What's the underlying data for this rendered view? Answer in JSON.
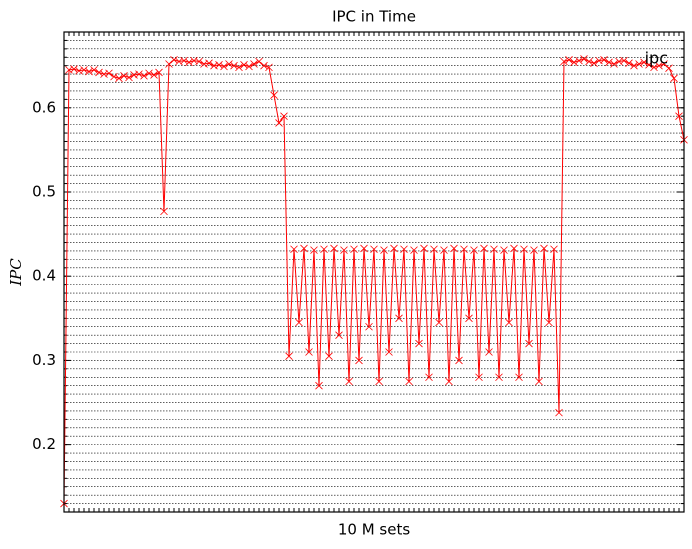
{
  "chart_data": {
    "type": "line",
    "title": "IPC in Time",
    "x_label": "10 M sets",
    "y_label": "IPC",
    "legend": "upper right",
    "grid": true,
    "xlim": [
      0,
      124
    ],
    "ylim": [
      0.12,
      0.69
    ],
    "yticks": [
      0.2,
      0.3,
      0.4,
      0.5,
      0.6
    ],
    "yminor": [
      0.12,
      0.13,
      0.14,
      0.15,
      0.16,
      0.17,
      0.18,
      0.19,
      0.2,
      0.21,
      0.22,
      0.23,
      0.24,
      0.25,
      0.26,
      0.27,
      0.28,
      0.29,
      0.3,
      0.31,
      0.32,
      0.33,
      0.34,
      0.35,
      0.36,
      0.37,
      0.38,
      0.39,
      0.4,
      0.41,
      0.42,
      0.43,
      0.44,
      0.45,
      0.46,
      0.47,
      0.48,
      0.49,
      0.5,
      0.51,
      0.52,
      0.53,
      0.54,
      0.55,
      0.56,
      0.57,
      0.58,
      0.59,
      0.6,
      0.61,
      0.62,
      0.63,
      0.64,
      0.65,
      0.66,
      0.67,
      0.68,
      0.69
    ],
    "x": [
      0,
      1,
      2,
      3,
      4,
      5,
      6,
      7,
      8,
      9,
      10,
      11,
      12,
      13,
      14,
      15,
      16,
      17,
      18,
      19,
      20,
      21,
      22,
      23,
      24,
      25,
      26,
      27,
      28,
      29,
      30,
      31,
      32,
      33,
      34,
      35,
      36,
      37,
      38,
      39,
      40,
      41,
      42,
      43,
      44,
      45,
      46,
      47,
      48,
      49,
      50,
      51,
      52,
      53,
      54,
      55,
      56,
      57,
      58,
      59,
      60,
      61,
      62,
      63,
      64,
      65,
      66,
      67,
      68,
      69,
      70,
      71,
      72,
      73,
      74,
      75,
      76,
      77,
      78,
      79,
      80,
      81,
      82,
      83,
      84,
      85,
      86,
      87,
      88,
      89,
      90,
      91,
      92,
      93,
      94,
      95,
      96,
      97,
      98,
      99,
      100,
      101,
      102,
      103,
      104,
      105,
      106,
      107,
      108,
      109,
      110,
      111,
      112,
      113,
      114,
      115,
      116,
      117,
      118,
      119,
      120,
      121,
      122,
      123,
      124
    ],
    "series": [
      {
        "name": "ipc",
        "color": "#ff0000",
        "values": [
          0.13,
          0.645,
          0.646,
          0.644,
          0.645,
          0.643,
          0.645,
          0.642,
          0.64,
          0.641,
          0.637,
          0.635,
          0.638,
          0.636,
          0.639,
          0.64,
          0.638,
          0.641,
          0.639,
          0.642,
          0.477,
          0.652,
          0.657,
          0.655,
          0.656,
          0.654,
          0.656,
          0.655,
          0.652,
          0.653,
          0.65,
          0.651,
          0.649,
          0.652,
          0.65,
          0.648,
          0.651,
          0.649,
          0.652,
          0.655,
          0.65,
          0.648,
          0.615,
          0.582,
          0.59,
          0.305,
          0.432,
          0.345,
          0.433,
          0.31,
          0.431,
          0.27,
          0.432,
          0.305,
          0.433,
          0.33,
          0.431,
          0.275,
          0.432,
          0.3,
          0.433,
          0.34,
          0.432,
          0.275,
          0.431,
          0.31,
          0.433,
          0.35,
          0.432,
          0.275,
          0.431,
          0.32,
          0.433,
          0.28,
          0.432,
          0.345,
          0.431,
          0.275,
          0.433,
          0.3,
          0.432,
          0.35,
          0.431,
          0.28,
          0.433,
          0.31,
          0.432,
          0.28,
          0.431,
          0.345,
          0.433,
          0.28,
          0.432,
          0.32,
          0.431,
          0.275,
          0.433,
          0.345,
          0.432,
          0.238,
          0.655,
          0.657,
          0.654,
          0.656,
          0.658,
          0.655,
          0.653,
          0.656,
          0.657,
          0.654,
          0.652,
          0.655,
          0.656,
          0.653,
          0.65,
          0.652,
          0.654,
          0.651,
          0.648,
          0.65,
          0.652,
          0.647,
          0.635,
          0.59,
          0.562
        ]
      }
    ]
  }
}
